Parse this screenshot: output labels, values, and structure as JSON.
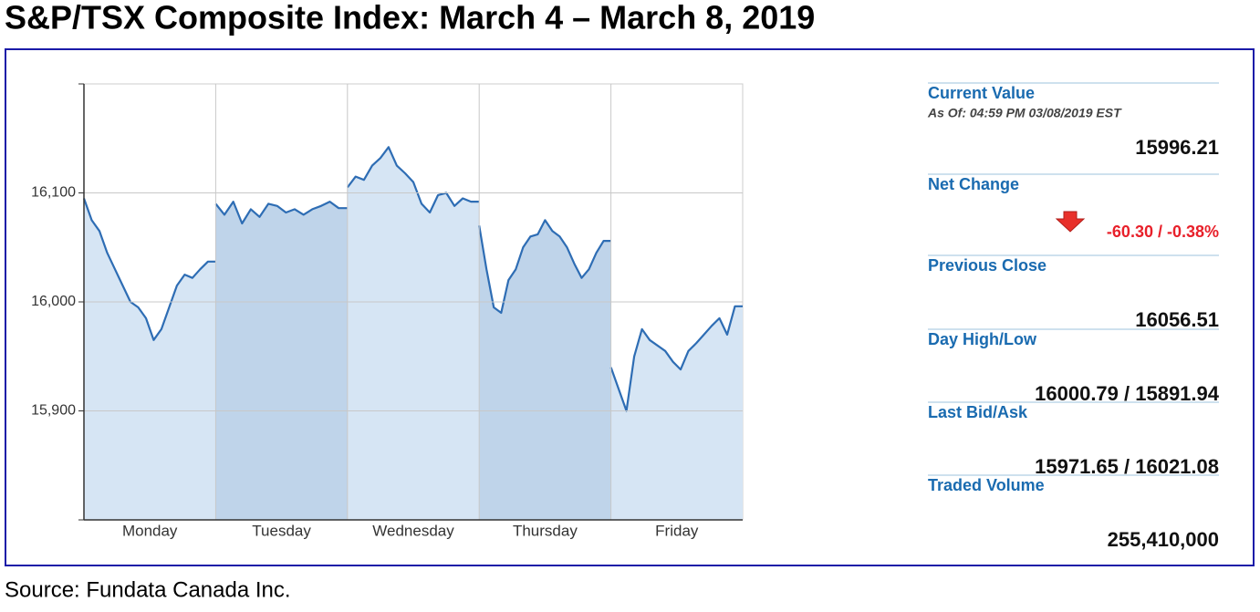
{
  "chart_data": {
    "type": "line",
    "title": "S&P/TSX Composite Index: March 4 – March 8, 2019",
    "source": "Source: Fundata Canada Inc.",
    "categories": [
      "Monday",
      "Tuesday",
      "Wednesday",
      "Thursday",
      "Friday"
    ],
    "values": [
      [
        16095,
        16075,
        16065,
        16045,
        16030,
        16015,
        16000,
        15995,
        15985,
        15965,
        15975,
        15995,
        16015,
        16025,
        16022,
        16030,
        16037,
        16037
      ],
      [
        16090,
        16080,
        16092,
        16072,
        16085,
        16078,
        16090,
        16088,
        16082,
        16085,
        16080,
        16085,
        16088,
        16092,
        16086,
        16086
      ],
      [
        16105,
        16115,
        16112,
        16125,
        16132,
        16142,
        16125,
        16118,
        16110,
        16090,
        16082,
        16098,
        16100,
        16088,
        16095,
        16092,
        16092
      ],
      [
        16070,
        16030,
        15995,
        15990,
        16020,
        16030,
        16050,
        16060,
        16062,
        16075,
        16065,
        16060,
        16050,
        16035,
        16022,
        16030,
        16045,
        16056,
        16056
      ],
      [
        15940,
        15920,
        15900,
        15950,
        15975,
        15965,
        15960,
        15955,
        15945,
        15938,
        15955,
        15962,
        15970,
        15978,
        15985,
        15970,
        15996,
        15996
      ]
    ],
    "color": "#2e6db4",
    "fill_colors": [
      "#d6e5f4",
      "#bfd4ea"
    ],
    "ylim": [
      15800,
      16200
    ],
    "yticks": [
      {
        "value": 15900,
        "label": "15,900"
      },
      {
        "value": 16000,
        "label": "16,000"
      },
      {
        "value": 16100,
        "label": "16,100"
      }
    ],
    "grid": true
  },
  "panel": [
    {
      "label": "Current Value",
      "sub": "As Of: 04:59 PM 03/08/2019 EST",
      "value": "15996.21"
    },
    {
      "label": "Net Change",
      "value": "-60.30 / -0.38%"
    },
    {
      "label": "Previous Close",
      "value": "16056.51"
    },
    {
      "label": "Day High/Low",
      "value": "16000.79 / 15891.94"
    },
    {
      "label": "Last Bid/Ask",
      "value": "15971.65 / 16021.08"
    },
    {
      "label": "Traded Volume",
      "value": "255,410,000"
    }
  ]
}
